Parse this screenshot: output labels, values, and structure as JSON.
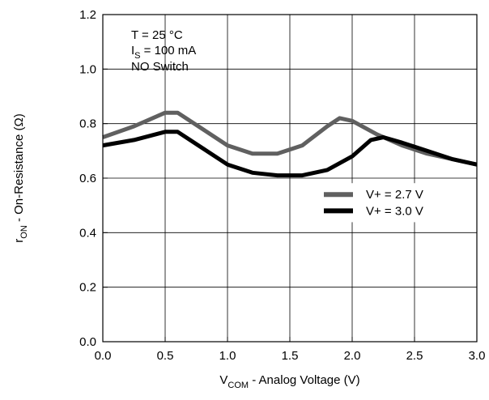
{
  "chart_data": {
    "type": "line",
    "xlabel": {
      "main": "V",
      "sub": "COM",
      "rest": " -  Analog Voltage (V)"
    },
    "ylabel": {
      "main": "r",
      "sub": "ON",
      "rest": " -   On-Resistance (Ω)"
    },
    "xlim": [
      0.0,
      3.0
    ],
    "ylim": [
      0.0,
      1.2
    ],
    "x_ticks": [
      "0.0",
      "0.5",
      "1.0",
      "1.5",
      "2.0",
      "2.5",
      "3.0"
    ],
    "y_ticks": [
      "0.0",
      "0.2",
      "0.4",
      "0.6",
      "0.8",
      "1.0",
      "1.2"
    ],
    "grid": true,
    "annotation": {
      "line1": "T = 25 °C",
      "line2_main": "I",
      "line2_sub": "S",
      "line2_rest": " = 100 mA",
      "line3": "NO Switch"
    },
    "legend_position": "center-right",
    "series": [
      {
        "name": "V+ = 2.7 V",
        "color": "#606060",
        "x": [
          0.0,
          0.25,
          0.5,
          0.6,
          0.8,
          1.0,
          1.2,
          1.4,
          1.6,
          1.8,
          1.9,
          2.0,
          2.2,
          2.4,
          2.6,
          2.8,
          3.0
        ],
        "y": [
          0.75,
          0.79,
          0.84,
          0.84,
          0.78,
          0.72,
          0.69,
          0.69,
          0.72,
          0.79,
          0.82,
          0.81,
          0.76,
          0.72,
          0.69,
          0.67,
          0.65
        ]
      },
      {
        "name": "V+ = 3.0 V",
        "color": "#000000",
        "x": [
          0.0,
          0.25,
          0.5,
          0.6,
          0.8,
          1.0,
          1.2,
          1.4,
          1.6,
          1.8,
          2.0,
          2.15,
          2.25,
          2.4,
          2.6,
          2.8,
          3.0
        ],
        "y": [
          0.72,
          0.74,
          0.77,
          0.77,
          0.71,
          0.65,
          0.62,
          0.61,
          0.61,
          0.63,
          0.68,
          0.74,
          0.75,
          0.73,
          0.7,
          0.67,
          0.65
        ]
      }
    ]
  }
}
